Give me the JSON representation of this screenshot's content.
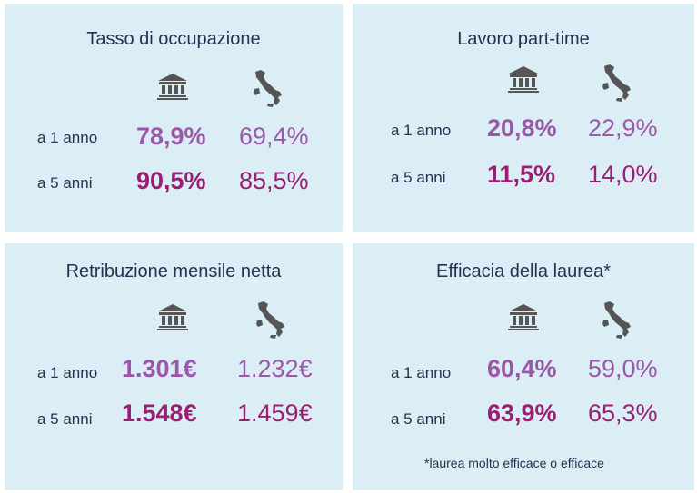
{
  "cards": [
    {
      "title": "Tasso di occupazione",
      "rows": [
        {
          "label": "a 1 anno",
          "uni": "78,9%",
          "italy": "69,4%"
        },
        {
          "label": "a 5 anni",
          "uni": "90,5%",
          "italy": "85,5%"
        }
      ]
    },
    {
      "title": "Lavoro part-time",
      "rows": [
        {
          "label": "a 1 anno",
          "uni": "20,8%",
          "italy": "22,9%"
        },
        {
          "label": "a 5 anni",
          "uni": "11,5%",
          "italy": "14,0%"
        }
      ]
    },
    {
      "title": "Retribuzione mensile netta",
      "rows": [
        {
          "label": "a 1 anno",
          "uni": "1.301€",
          "italy": "1.232€"
        },
        {
          "label": "a 5 anni",
          "uni": "1.548€",
          "italy": "1.459€"
        }
      ]
    },
    {
      "title": "Efficacia della laurea*",
      "rows": [
        {
          "label": "a 1 anno",
          "uni": "60,4%",
          "italy": "59,0%"
        },
        {
          "label": "a 5 anni",
          "uni": "63,9%",
          "italy": "65,3%"
        }
      ],
      "footnote": "*laurea molto efficace o efficace"
    }
  ],
  "icons": {
    "university": "university-building-icon",
    "italy": "italy-map-icon"
  },
  "colors": {
    "card_background": "#dbeef6",
    "text_dark": "#27314f",
    "value_light_purple": "#9b58a8",
    "value_dark_magenta": "#9a1e72",
    "icon_gray": "#555555"
  }
}
